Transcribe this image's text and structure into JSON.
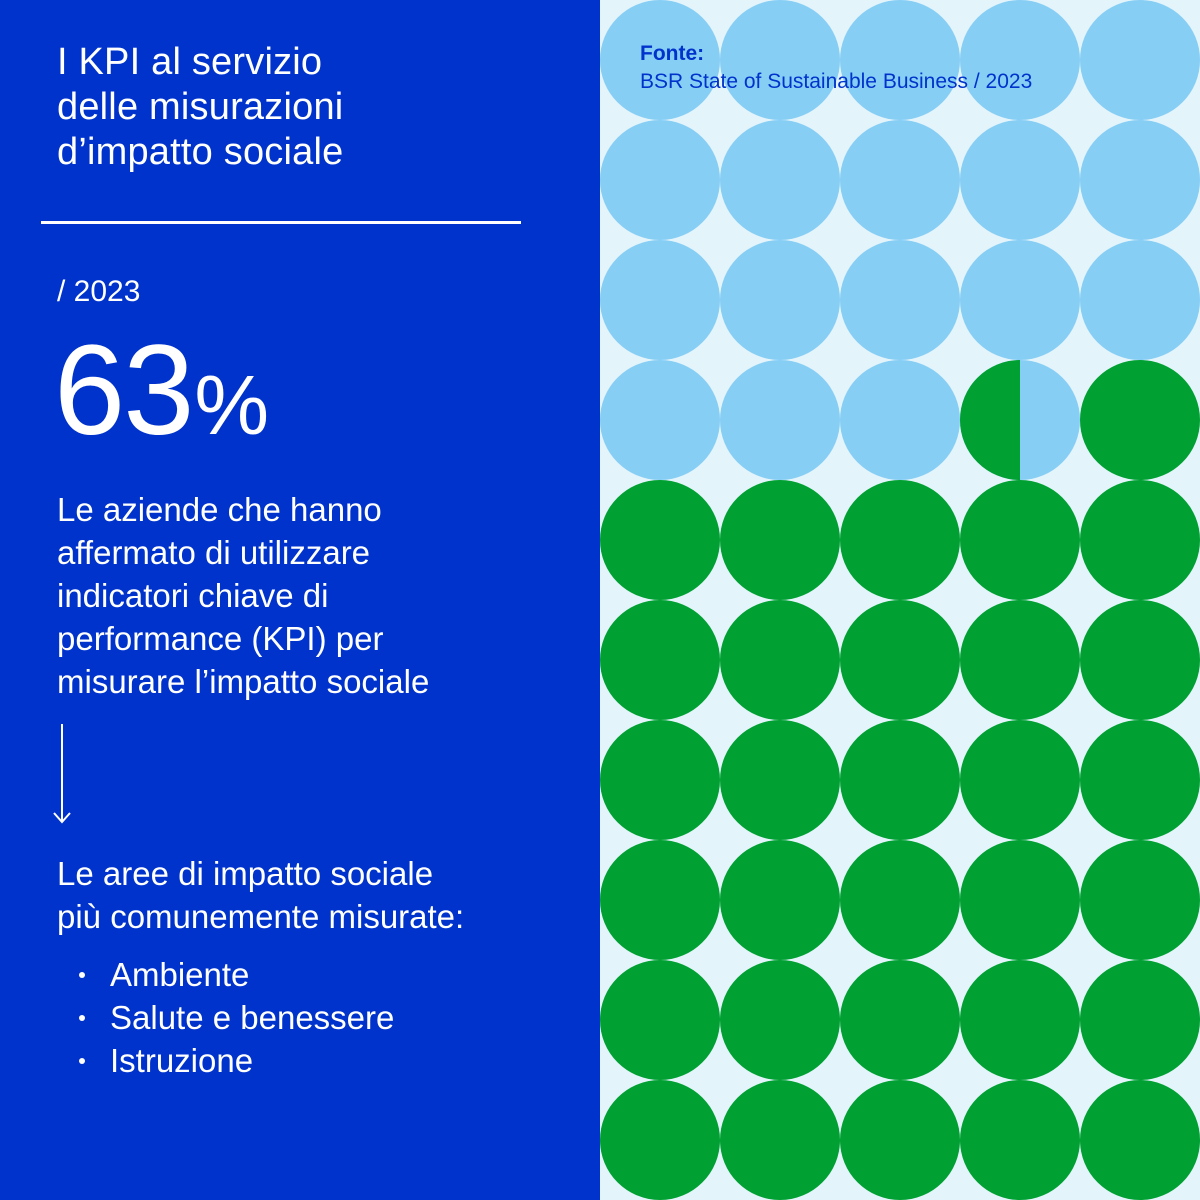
{
  "title": {
    "lines": [
      "I KPI al servizio",
      "delle misurazioni",
      "d’impatto sociale"
    ]
  },
  "year": "/ 2023",
  "stat": {
    "number": "63",
    "unit": "%",
    "value_percent": 63
  },
  "description": {
    "lines": [
      "Le aziende che hanno",
      "affermato di utilizzare",
      "indicatori chiave di",
      "performance (KPI) per",
      "misurare l’impatto sociale"
    ]
  },
  "areas": {
    "heading_lines": [
      "Le aree di impatto sociale",
      "più comunemente misurate:"
    ],
    "items": [
      "Ambiente",
      "Salute e benessere",
      "Istruzione"
    ]
  },
  "source": {
    "label": "Fonte:",
    "text": "BSR State of Sustainable Business / 2023"
  },
  "grid": {
    "filled_count": 31.5,
    "total_count": 50
  },
  "colors": {
    "background_left": "#0033cc",
    "background_right": "#e3f4fb",
    "dot_empty": "#87cef5",
    "dot_filled": "#00a032",
    "text_light": "#ffffff",
    "source_text": "#0033cc",
    "arrow": "down-arrow-icon"
  }
}
